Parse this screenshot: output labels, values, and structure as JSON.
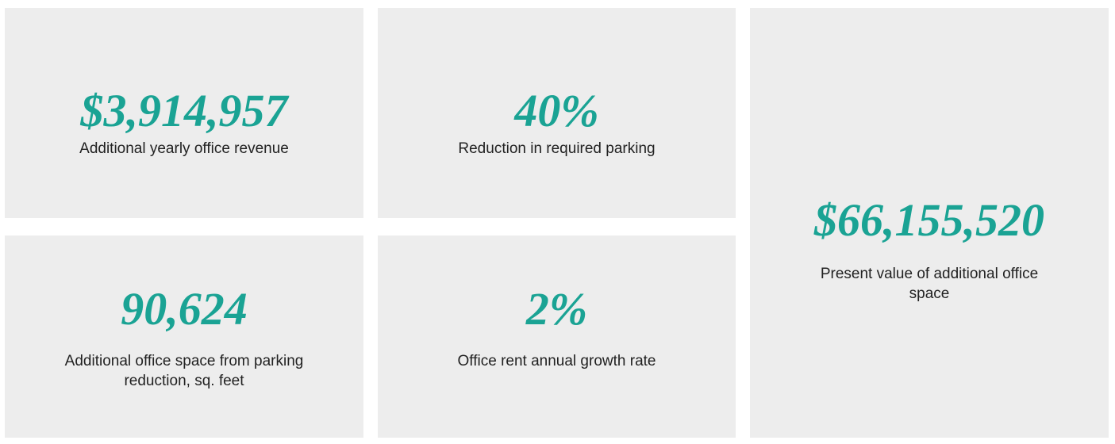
{
  "cards": [
    {
      "value": "$3,914,957",
      "label": "Additional yearly office revenue"
    },
    {
      "value": "40%",
      "label": "Reduction in required parking"
    },
    {
      "value": "$66,155,520",
      "label": "Present value of additional office space"
    },
    {
      "value": "90,624",
      "label": "Additional office space from parking reduction, sq. feet"
    },
    {
      "value": "2%",
      "label": "Office rent annual growth rate"
    }
  ]
}
